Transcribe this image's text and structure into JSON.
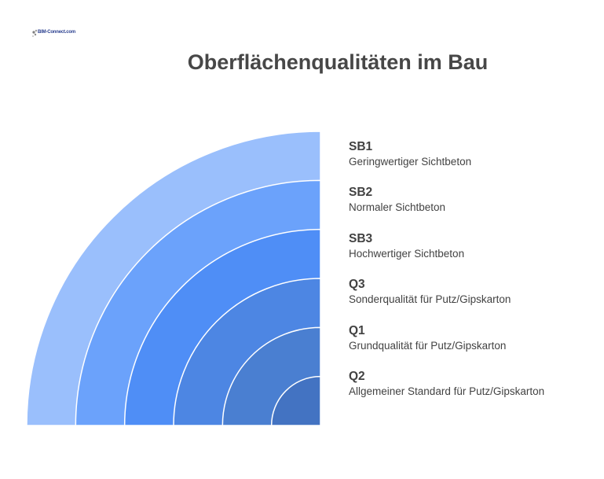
{
  "title": "Oberflächenqualitäten im Bau",
  "logo": {
    "text": "BIM-Connect.com"
  },
  "levels": [
    {
      "name": "SB1",
      "description": "Geringwertiger Sichtbeton",
      "color": "#9abffc"
    },
    {
      "name": "SB2",
      "description": "Normaler Sichtbeton",
      "color": "#6ba2fb"
    },
    {
      "name": "SB3",
      "description": "Hochwertiger Sichtbeton",
      "color": "#4f8ef6"
    },
    {
      "name": "Q3",
      "description": "Sonderqualität für Putz/Gipskarton",
      "color": "#4d86e3"
    },
    {
      "name": "Q1",
      "description": "Grundqualität für Putz/Gipskarton",
      "color": "#4a7fd1"
    },
    {
      "name": "Q2",
      "description": "Allgemeiner Standard für Putz/Gipskarton",
      "color": "#4373c2"
    }
  ]
}
